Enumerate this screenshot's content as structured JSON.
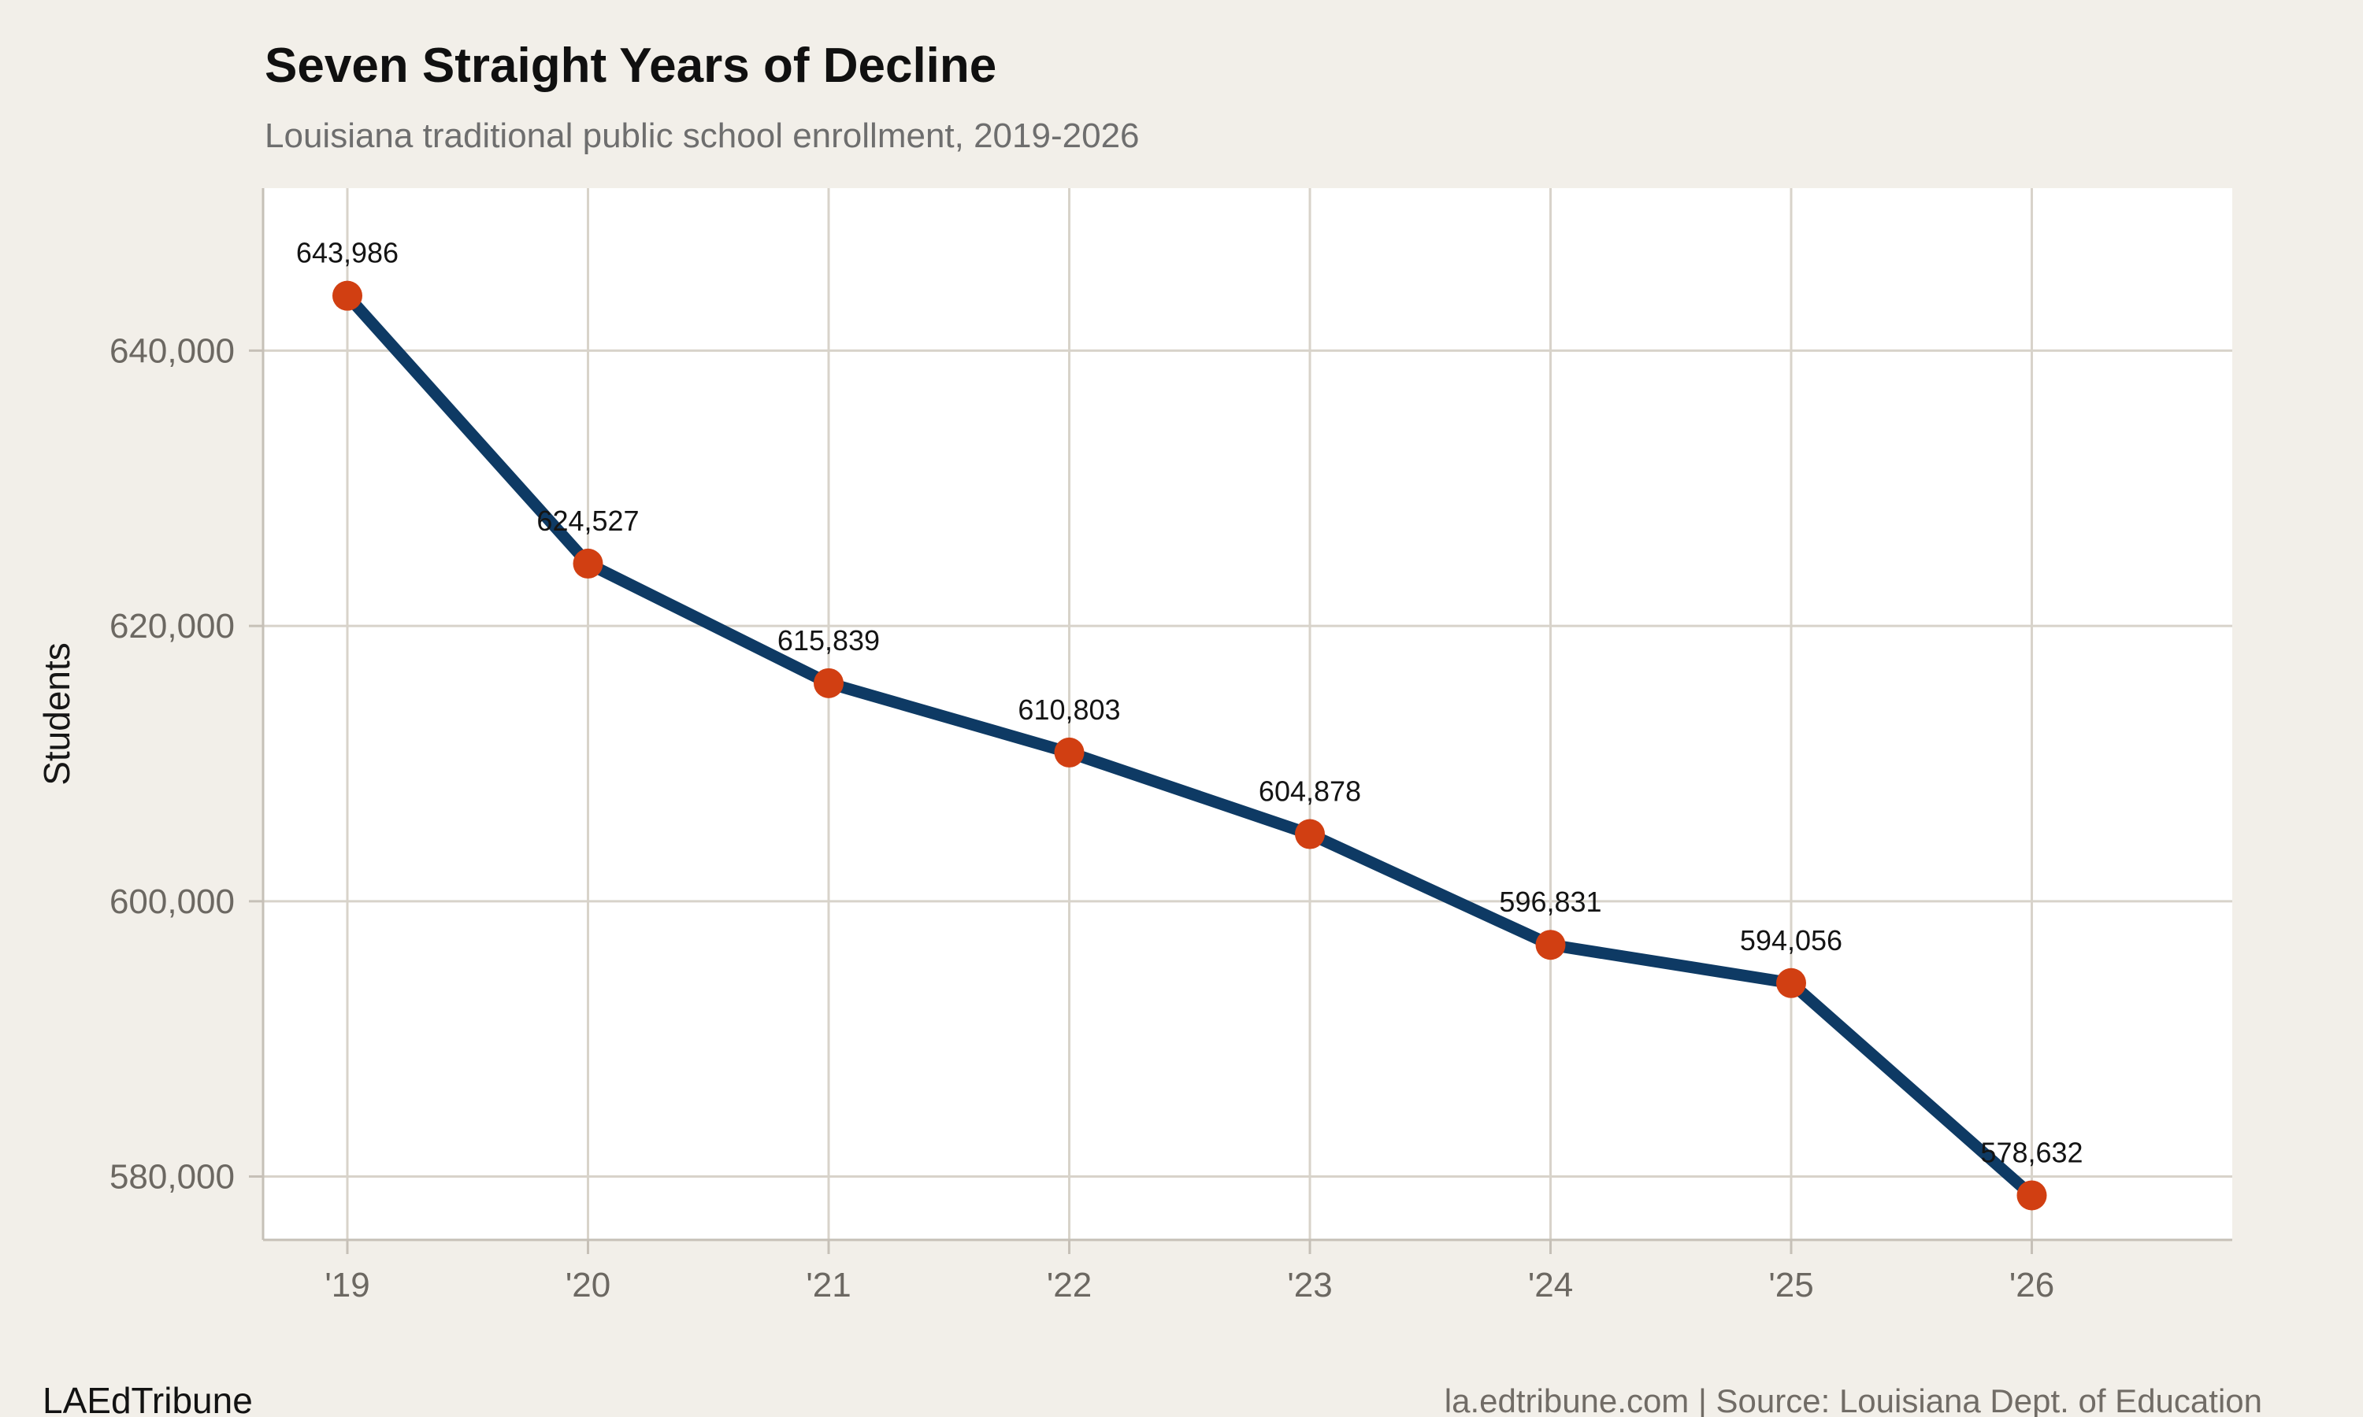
{
  "page": {
    "background_color": "#F2EFE9"
  },
  "chart_data": {
    "type": "line",
    "title": "Seven Straight Years of Decline",
    "subtitle": "Louisiana traditional public school enrollment, 2019-2026",
    "categories": [
      "'19",
      "'20",
      "'21",
      "'22",
      "'23",
      "'24",
      "'25",
      "'26"
    ],
    "series": [
      {
        "name": "Traditional public school enrollment",
        "values": [
          643986,
          624527,
          615839,
          610803,
          604878,
          596831,
          594056,
          578632
        ]
      }
    ],
    "point_labels": [
      "643,986",
      "624,527",
      "615,839",
      "610,803",
      "604,878",
      "596,831",
      "594,056",
      "578,632"
    ],
    "xlabel": "",
    "ylabel": "Students",
    "ylim": [
      575400,
      651800
    ],
    "yticks": [
      580000,
      600000,
      620000,
      640000
    ],
    "ytick_labels": [
      "580,000",
      "600,000",
      "620,000",
      "640,000"
    ],
    "grid": true,
    "legend_position": "none",
    "line_color": "#0E3A64",
    "point_color": "#D13F12",
    "plot_bg_color": "#FFFFFF",
    "grid_color": "#D8D3CA",
    "axis_color": "#C6C0B7",
    "tick_label_color": "#6C6862",
    "data_label_color": "#141414"
  },
  "footer": {
    "brand": "LAEdTribune",
    "source": "la.edtribune.com | Source: Louisiana Dept. of Education"
  }
}
